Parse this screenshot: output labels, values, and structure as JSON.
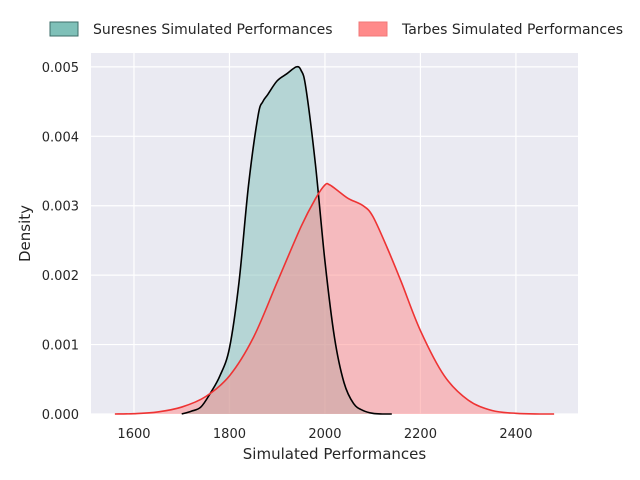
{
  "chart_data": {
    "type": "area",
    "xlabel": "Simulated Performances",
    "ylabel": "Density",
    "xlim": [
      1510,
      2530
    ],
    "ylim": [
      0,
      0.0052
    ],
    "xticks": [
      1600,
      1800,
      2000,
      2200,
      2400
    ],
    "yticks": [
      0.0,
      0.001,
      0.002,
      0.003,
      0.004,
      0.005
    ],
    "ytick_labels": [
      "0.000",
      "0.001",
      "0.002",
      "0.003",
      "0.004",
      "0.005"
    ],
    "grid": true,
    "legend_position": "top",
    "series": [
      {
        "name": "Suresnes Simulated Performances",
        "fill": "#7fc0b8",
        "line": "#000000",
        "x": [
          1700,
          1720,
          1740,
          1760,
          1780,
          1800,
          1820,
          1840,
          1860,
          1870,
          1880,
          1900,
          1920,
          1940,
          1950,
          1960,
          1980,
          2000,
          2020,
          2040,
          2060,
          2080,
          2100,
          2120,
          2140
        ],
        "y": [
          0.0,
          4e-05,
          0.0001,
          0.0003,
          0.00055,
          0.00095,
          0.0019,
          0.0033,
          0.0043,
          0.0045,
          0.0046,
          0.0048,
          0.0049,
          0.005,
          0.00495,
          0.0047,
          0.0036,
          0.0022,
          0.0011,
          0.00045,
          0.00015,
          5e-05,
          1e-05,
          0.0,
          0.0
        ]
      },
      {
        "name": "Tarbes Simulated Performances",
        "fill": "#ff8a8a",
        "line": "#ee3333",
        "x": [
          1560,
          1600,
          1650,
          1700,
          1750,
          1800,
          1850,
          1900,
          1950,
          1980,
          2000,
          2010,
          2030,
          2050,
          2080,
          2100,
          2130,
          2160,
          2200,
          2250,
          2300,
          2350,
          2400,
          2450,
          2480
        ],
        "y": [
          0.0,
          5e-06,
          3e-05,
          0.0001,
          0.00025,
          0.00055,
          0.0011,
          0.0019,
          0.0027,
          0.0031,
          0.0033,
          0.0033,
          0.0032,
          0.0031,
          0.003,
          0.00285,
          0.0024,
          0.0019,
          0.0012,
          0.00055,
          0.0002,
          5e-05,
          1e-05,
          0.0,
          0.0
        ]
      }
    ]
  }
}
